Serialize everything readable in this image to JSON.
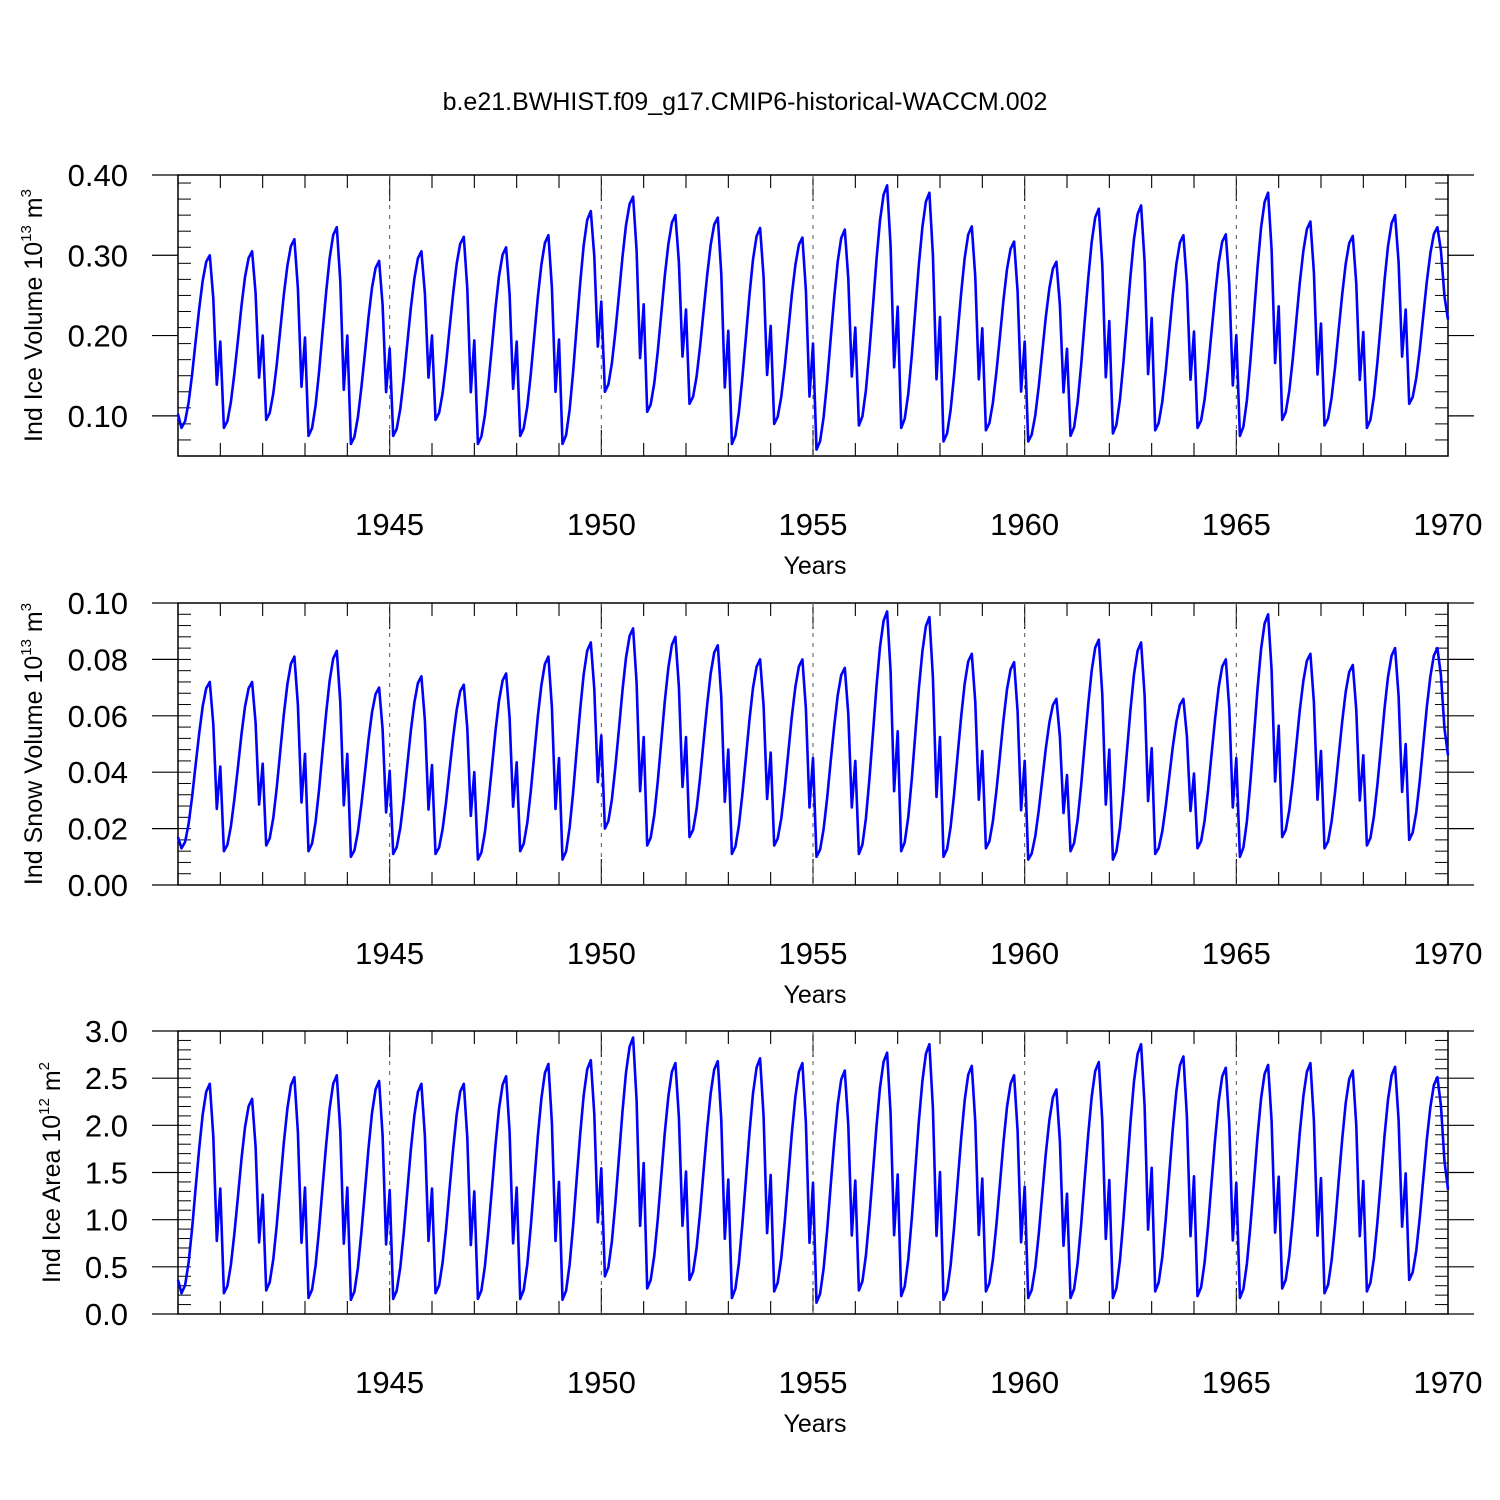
{
  "chart_data": [
    {
      "type": "line",
      "title": "b.e21.BWHIST.f09_g17.CMIP6-historical-WACCM.002",
      "ylabel_main": "Ind Ice Volume 10",
      "ylabel_exp": "13",
      "ylabel_unit": " m",
      "ylabel_unit_exp": "3",
      "xlabel": "Years",
      "xlim": [
        1940.0,
        1970.0
      ],
      "ylim": [
        0.05,
        0.4
      ],
      "yticks": [
        0.1,
        0.2,
        0.3,
        0.4
      ],
      "yticklabels": [
        "0.10",
        "0.20",
        "0.30",
        "0.40"
      ],
      "xticks": [
        1945,
        1950,
        1955,
        1960,
        1965,
        1970
      ],
      "xticklabels": [
        "1945",
        "1950",
        "1955",
        "1960",
        "1965",
        "1970"
      ],
      "color": "#0000ff",
      "series": [
        {
          "name": "Ind Ice Volume",
          "annual_max": [
            0.3,
            0.305,
            0.32,
            0.335,
            0.293,
            0.305,
            0.323,
            0.31,
            0.325,
            0.355,
            0.373,
            0.35,
            0.347,
            0.334,
            0.322,
            0.332,
            0.387,
            0.378,
            0.336,
            0.317,
            0.292,
            0.358,
            0.362,
            0.325,
            0.326,
            0.378,
            0.342,
            0.324,
            0.35,
            0.335
          ],
          "annual_min": [
            0.085,
            0.085,
            0.095,
            0.075,
            0.065,
            0.075,
            0.095,
            0.065,
            0.075,
            0.065,
            0.13,
            0.105,
            0.115,
            0.065,
            0.09,
            0.058,
            0.088,
            0.085,
            0.068,
            0.082,
            0.068,
            0.075,
            0.078,
            0.082,
            0.085,
            0.075,
            0.095,
            0.088,
            0.085,
            0.115
          ],
          "end_value": 0.22
        }
      ]
    },
    {
      "type": "line",
      "ylabel_main": "Ind Snow Volume 10",
      "ylabel_exp": "13",
      "ylabel_unit": " m",
      "ylabel_unit_exp": "3",
      "xlabel": "Years",
      "xlim": [
        1940.0,
        1970.0
      ],
      "ylim": [
        0.0,
        0.1
      ],
      "yticks": [
        0.0,
        0.02,
        0.04,
        0.06,
        0.08,
        0.1
      ],
      "yticklabels": [
        "0.00",
        "0.02",
        "0.04",
        "0.06",
        "0.08",
        "0.10"
      ],
      "xticks": [
        1945,
        1950,
        1955,
        1960,
        1965,
        1970
      ],
      "xticklabels": [
        "1945",
        "1950",
        "1955",
        "1960",
        "1965",
        "1970"
      ],
      "color": "#0000ff",
      "series": [
        {
          "name": "Ind Snow Volume",
          "annual_max": [
            0.072,
            0.072,
            0.081,
            0.083,
            0.07,
            0.074,
            0.071,
            0.075,
            0.081,
            0.086,
            0.091,
            0.088,
            0.085,
            0.08,
            0.08,
            0.077,
            0.097,
            0.095,
            0.082,
            0.079,
            0.066,
            0.087,
            0.086,
            0.066,
            0.08,
            0.096,
            0.082,
            0.078,
            0.084,
            0.084
          ],
          "annual_min": [
            0.013,
            0.012,
            0.014,
            0.012,
            0.01,
            0.011,
            0.011,
            0.009,
            0.012,
            0.009,
            0.02,
            0.014,
            0.017,
            0.011,
            0.014,
            0.01,
            0.011,
            0.012,
            0.01,
            0.013,
            0.009,
            0.012,
            0.009,
            0.011,
            0.013,
            0.01,
            0.017,
            0.013,
            0.014,
            0.016
          ],
          "start_value": 0.017,
          "end_value": 0.046
        }
      ]
    },
    {
      "type": "line",
      "ylabel_main": "Ind Ice Area 10",
      "ylabel_exp": "12",
      "ylabel_unit": " m",
      "ylabel_unit_exp": "2",
      "xlabel": "Years",
      "xlim": [
        1940.0,
        1970.0
      ],
      "ylim": [
        0.0,
        3.0
      ],
      "yticks": [
        0.0,
        0.5,
        1.0,
        1.5,
        2.0,
        2.5,
        3.0
      ],
      "yticklabels": [
        "0.0",
        "0.5",
        "1.0",
        "1.5",
        "2.0",
        "2.5",
        "3.0"
      ],
      "xticks": [
        1945,
        1950,
        1955,
        1960,
        1965,
        1970
      ],
      "xticklabels": [
        "1945",
        "1950",
        "1955",
        "1960",
        "1965",
        "1970"
      ],
      "color": "#0000ff",
      "series": [
        {
          "name": "Ind Ice Area",
          "annual_max": [
            2.44,
            2.28,
            2.51,
            2.53,
            2.47,
            2.44,
            2.44,
            2.52,
            2.65,
            2.69,
            2.93,
            2.66,
            2.68,
            2.71,
            2.66,
            2.58,
            2.77,
            2.86,
            2.63,
            2.53,
            2.38,
            2.67,
            2.86,
            2.73,
            2.61,
            2.64,
            2.66,
            2.58,
            2.62,
            2.51
          ],
          "annual_min": [
            0.22,
            0.22,
            0.25,
            0.17,
            0.15,
            0.16,
            0.22,
            0.16,
            0.16,
            0.15,
            0.4,
            0.27,
            0.36,
            0.17,
            0.24,
            0.12,
            0.25,
            0.19,
            0.15,
            0.24,
            0.17,
            0.17,
            0.17,
            0.24,
            0.19,
            0.17,
            0.27,
            0.22,
            0.24,
            0.36
          ],
          "start_value": 0.36,
          "end_value": 1.32
        }
      ]
    }
  ]
}
